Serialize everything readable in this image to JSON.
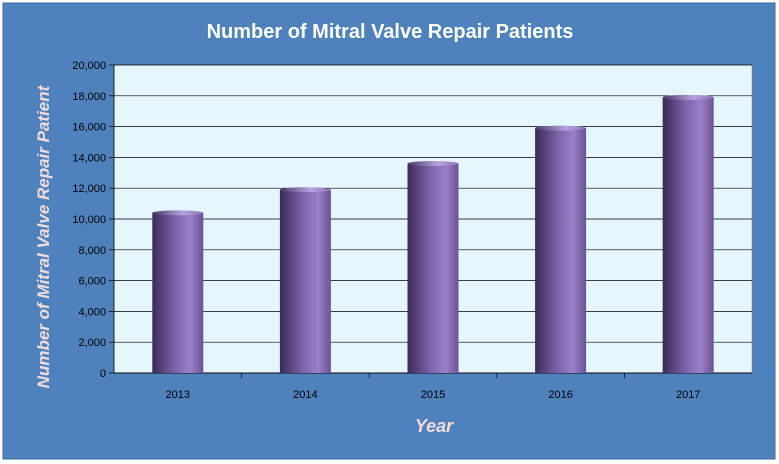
{
  "chart_data": {
    "type": "bar",
    "title": "Number of Mitral Valve Repair Patients",
    "xlabel": "Year",
    "ylabel": "Number of Mitral Valve Repair Patient",
    "categories": [
      "2013",
      "2014",
      "2015",
      "2016",
      "2017"
    ],
    "values": [
      10400,
      11900,
      13600,
      15900,
      17900
    ],
    "ylim": [
      0,
      20000
    ],
    "yticks": [
      "0",
      "2,000",
      "4,000",
      "6,000",
      "8,000",
      "10,000",
      "12,000",
      "14,000",
      "16,000",
      "18,000",
      "20,000"
    ],
    "grid": true,
    "legend": "none",
    "colors": {
      "background": "#4f81bd",
      "plot_area": "#e5f7fc",
      "bar_light": "#9a80c8",
      "bar_dark": "#3a2a58",
      "axis_title": "#f2dcdb",
      "title": "#ffffff"
    }
  }
}
